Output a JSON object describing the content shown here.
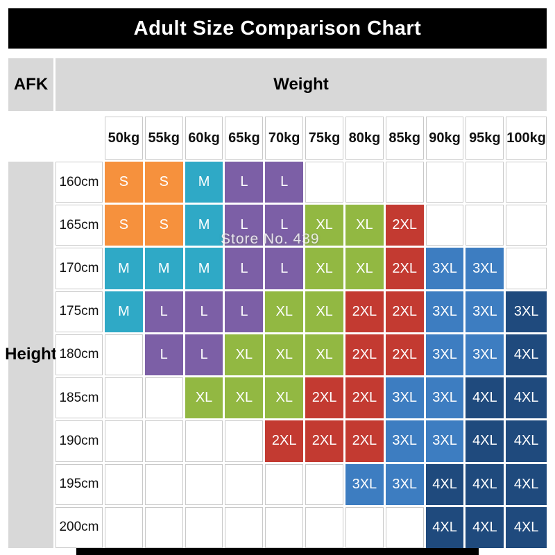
{
  "title": "Adult Size Comparison Chart",
  "corner_label": "AFK",
  "weight_label": "Weight",
  "height_label": "Height",
  "watermark": "Store No. 439",
  "colors": {
    "S": "#f6913d",
    "M": "#2fa9c6",
    "L": "#7c5fa6",
    "XL": "#92b842",
    "2XL": "#c33a31",
    "3XL": "#3d7dc1",
    "4XL": "#1f4a7d",
    "header_bg": "#d8d8d8",
    "title_bg": "#000000",
    "grid_line": "#c9c9c9"
  },
  "chart_data": {
    "type": "table",
    "title": "Adult Size Comparison Chart",
    "xlabel": "Weight",
    "ylabel": "Height",
    "columns": [
      "50kg",
      "55kg",
      "60kg",
      "65kg",
      "70kg",
      "75kg",
      "80kg",
      "85kg",
      "90kg",
      "95kg",
      "100kg"
    ],
    "rows": [
      {
        "height": "160cm",
        "sizes": [
          "S",
          "S",
          "M",
          "L",
          "L",
          "",
          "",
          "",
          "",
          "",
          ""
        ]
      },
      {
        "height": "165cm",
        "sizes": [
          "S",
          "S",
          "M",
          "L",
          "L",
          "XL",
          "XL",
          "2XL",
          "",
          "",
          ""
        ]
      },
      {
        "height": "170cm",
        "sizes": [
          "M",
          "M",
          "M",
          "L",
          "L",
          "XL",
          "XL",
          "2XL",
          "3XL",
          "3XL",
          ""
        ]
      },
      {
        "height": "175cm",
        "sizes": [
          "M",
          "L",
          "L",
          "L",
          "XL",
          "XL",
          "2XL",
          "2XL",
          "3XL",
          "3XL",
          "3XL"
        ]
      },
      {
        "height": "180cm",
        "sizes": [
          "",
          "L",
          "L",
          "XL",
          "XL",
          "XL",
          "2XL",
          "2XL",
          "3XL",
          "3XL",
          "4XL"
        ]
      },
      {
        "height": "185cm",
        "sizes": [
          "",
          "",
          "XL",
          "XL",
          "XL",
          "2XL",
          "2XL",
          "3XL",
          "3XL",
          "4XL",
          "4XL"
        ]
      },
      {
        "height": "190cm",
        "sizes": [
          "",
          "",
          "",
          "",
          "2XL",
          "2XL",
          "2XL",
          "3XL",
          "3XL",
          "4XL",
          "4XL"
        ]
      },
      {
        "height": "195cm",
        "sizes": [
          "",
          "",
          "",
          "",
          "",
          "",
          "3XL",
          "3XL",
          "4XL",
          "4XL",
          "4XL"
        ]
      },
      {
        "height": "200cm",
        "sizes": [
          "",
          "",
          "",
          "",
          "",
          "",
          "",
          "",
          "4XL",
          "4XL",
          "4XL"
        ]
      }
    ],
    "overrides": [
      {
        "row": 3,
        "col": 10,
        "color": "4XL"
      }
    ]
  }
}
